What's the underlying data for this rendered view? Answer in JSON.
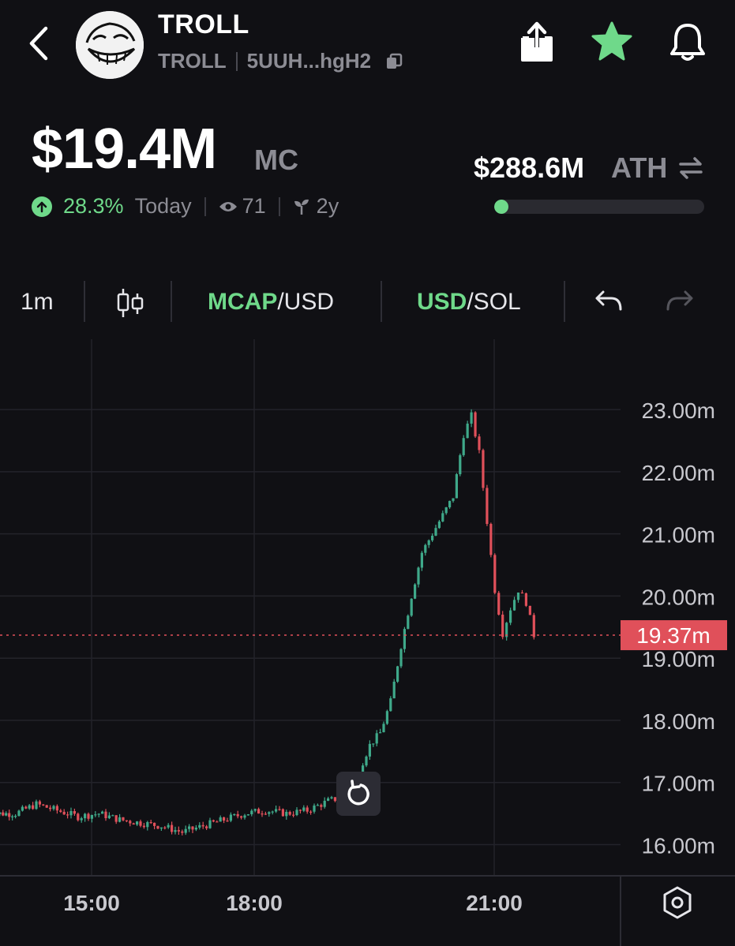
{
  "header": {
    "name": "TROLL",
    "ticker": "TROLL",
    "address": "5UUH...hgH2"
  },
  "stats": {
    "market_cap": "$19.4M",
    "market_cap_label": "MC",
    "change": "28.3%",
    "change_period": "Today",
    "watchers": "71",
    "age": "2y",
    "ath_value": "$288.6M",
    "ath_label": "ATH",
    "ath_progress": 0.067
  },
  "toolbar": {
    "interval": "1m",
    "mcap_active": "MCAP",
    "mcap_rest": "/USD",
    "usd_active": "USD",
    "usd_rest": "/SOL"
  },
  "colors": {
    "background": "#101014",
    "accent_green": "#6fd98a",
    "candle_up": "#3fa98a",
    "candle_down": "#e0505a",
    "price_tag": "#e0505a"
  },
  "icons": [
    "back-icon",
    "copy-icon",
    "share-icon",
    "star-icon",
    "bell-icon",
    "arrow-up-icon",
    "eye-icon",
    "sprout-icon",
    "swap-icon",
    "candlestick-icon",
    "undo-icon",
    "redo-icon",
    "reset-icon",
    "settings-icon"
  ],
  "chart_data": {
    "type": "candlestick",
    "x_ticks": [
      "15:00",
      "18:00",
      "21:00"
    ],
    "y_ticks": [
      "23.00m",
      "22.00m",
      "21.00m",
      "20.00m",
      "19.00m",
      "18.00m",
      "17.00m",
      "16.00m"
    ],
    "ylim": [
      15.6,
      23.7
    ],
    "current_price": 19.37,
    "current_price_label": "19.37m",
    "grid": true,
    "series": [
      {
        "x": 0,
        "y": 16.5
      },
      {
        "x": 0.6,
        "y": 16.5
      },
      {
        "x": 1,
        "y": 16.65
      },
      {
        "x": 1.4,
        "y": 16.55
      },
      {
        "x": 1.8,
        "y": 16.45
      },
      {
        "x": 2.2,
        "y": 16.5
      },
      {
        "x": 2.6,
        "y": 16.4
      },
      {
        "x": 3.0,
        "y": 16.35
      },
      {
        "x": 3.4,
        "y": 16.3
      },
      {
        "x": 3.8,
        "y": 16.2
      },
      {
        "x": 4.2,
        "y": 16.3
      },
      {
        "x": 4.6,
        "y": 16.4
      },
      {
        "x": 5.0,
        "y": 16.5
      },
      {
        "x": 5.4,
        "y": 16.55
      },
      {
        "x": 5.8,
        "y": 16.5
      },
      {
        "x": 6.2,
        "y": 16.55
      },
      {
        "x": 6.6,
        "y": 16.7
      },
      {
        "x": 7.0,
        "y": 16.8
      },
      {
        "x": 7.2,
        "y": 17.2
      },
      {
        "x": 7.4,
        "y": 17.6
      },
      {
        "x": 7.6,
        "y": 17.8
      },
      {
        "x": 7.8,
        "y": 18.3
      },
      {
        "x": 8.0,
        "y": 19.2
      },
      {
        "x": 8.2,
        "y": 20.0
      },
      {
        "x": 8.4,
        "y": 20.7
      },
      {
        "x": 8.6,
        "y": 21.0
      },
      {
        "x": 8.8,
        "y": 21.3
      },
      {
        "x": 9.0,
        "y": 21.6
      },
      {
        "x": 9.2,
        "y": 22.6
      },
      {
        "x": 9.35,
        "y": 22.9
      },
      {
        "x": 9.5,
        "y": 22.3
      },
      {
        "x": 9.65,
        "y": 21.2
      },
      {
        "x": 9.8,
        "y": 20.1
      },
      {
        "x": 9.95,
        "y": 19.4
      },
      {
        "x": 10.1,
        "y": 19.8
      },
      {
        "x": 10.25,
        "y": 20.1
      },
      {
        "x": 10.4,
        "y": 19.9
      },
      {
        "x": 10.55,
        "y": 19.37
      }
    ]
  }
}
